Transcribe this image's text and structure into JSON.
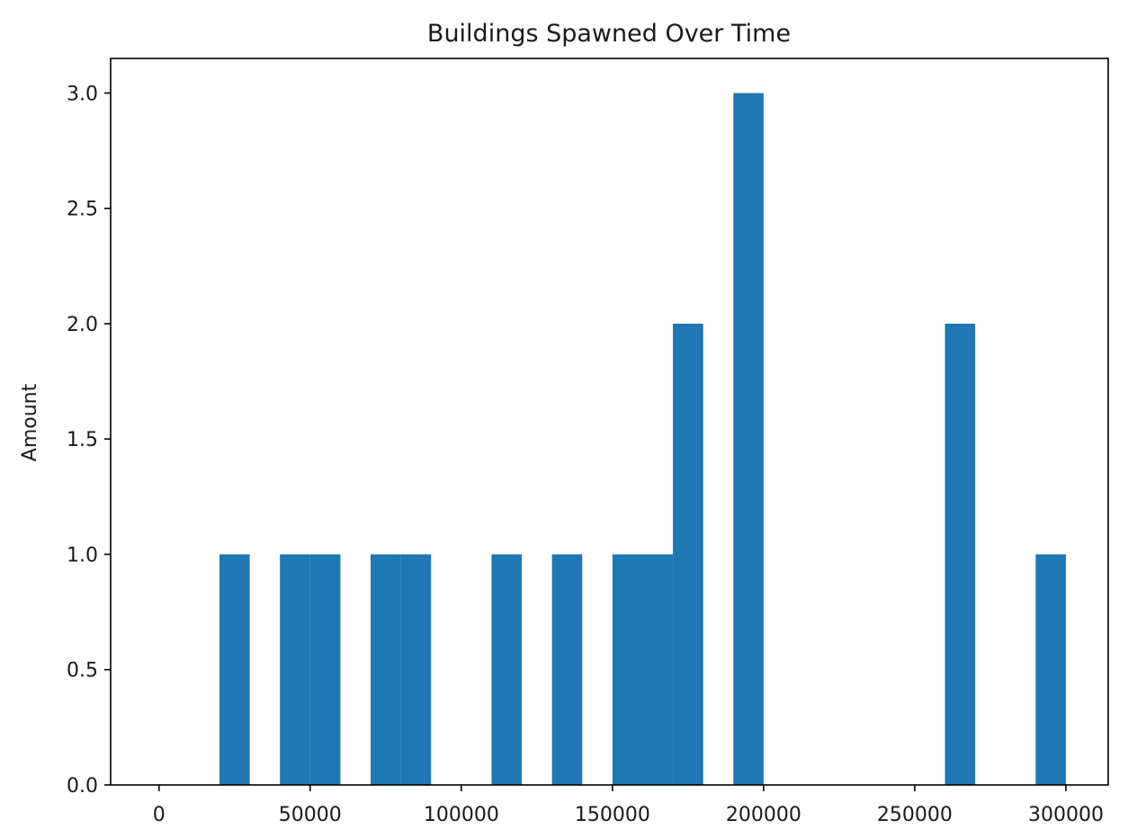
{
  "chart_data": {
    "type": "bar",
    "title": "Buildings Spawned Over Time",
    "xlabel": "",
    "ylabel": "Amount",
    "bar_color": "#1f77b4",
    "xlim": [
      -16000,
      314000
    ],
    "ylim": [
      0,
      3.15
    ],
    "bin_width": 10000,
    "x_ticks": [
      0,
      50000,
      100000,
      150000,
      200000,
      250000,
      300000
    ],
    "x_tick_labels": [
      "0",
      "50000",
      "100000",
      "150000",
      "200000",
      "250000",
      "300000"
    ],
    "y_ticks": [
      0.0,
      0.5,
      1.0,
      1.5,
      2.0,
      2.5,
      3.0
    ],
    "y_tick_labels": [
      "0.0",
      "0.5",
      "1.0",
      "1.5",
      "2.0",
      "2.5",
      "3.0"
    ],
    "grid": false,
    "bins": [
      {
        "start": 20000,
        "end": 30000,
        "value": 1
      },
      {
        "start": 40000,
        "end": 50000,
        "value": 1
      },
      {
        "start": 50000,
        "end": 60000,
        "value": 1
      },
      {
        "start": 70000,
        "end": 80000,
        "value": 1
      },
      {
        "start": 80000,
        "end": 90000,
        "value": 1
      },
      {
        "start": 110000,
        "end": 120000,
        "value": 1
      },
      {
        "start": 130000,
        "end": 140000,
        "value": 1
      },
      {
        "start": 150000,
        "end": 160000,
        "value": 1
      },
      {
        "start": 160000,
        "end": 170000,
        "value": 1
      },
      {
        "start": 170000,
        "end": 180000,
        "value": 2
      },
      {
        "start": 190000,
        "end": 200000,
        "value": 3
      },
      {
        "start": 260000,
        "end": 270000,
        "value": 2
      },
      {
        "start": 290000,
        "end": 300000,
        "value": 1
      }
    ]
  }
}
